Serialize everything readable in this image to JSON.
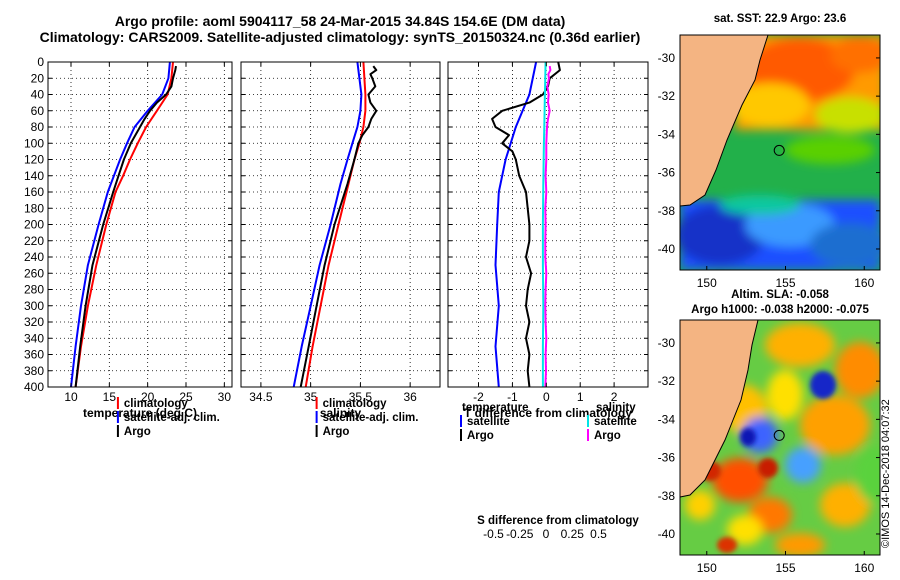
{
  "titles": {
    "line1": "Argo profile: aoml 5904117_58 24-Mar-2015 34.84S 154.6E (DM data)",
    "line2": "Climatology: CARS2009. Satellite-adjusted climatology: synTS_20150324.nc (0.36d earlier)"
  },
  "colors": {
    "climatology": "#ff0000",
    "satellite": "#0000ff",
    "argo": "#000000",
    "sal_satellite": "#00e5e5",
    "sal_argo": "#ff00ff"
  },
  "chart_data": [
    {
      "type": "line",
      "name": "temperature",
      "xlabel": "temperature (deg C)",
      "xlim": [
        7,
        31
      ],
      "xticks": [
        10,
        15,
        20,
        25,
        30
      ],
      "xtick_labels": [
        "10",
        "15",
        "20",
        "25",
        "30"
      ],
      "ylim": [
        0,
        400
      ],
      "yticks": [
        0,
        20,
        40,
        60,
        80,
        100,
        120,
        140,
        160,
        180,
        200,
        220,
        240,
        260,
        280,
        300,
        320,
        340,
        360,
        380,
        400
      ],
      "ytick_labels": [
        "0",
        "20",
        "40",
        "60",
        "80",
        "100",
        "120",
        "140",
        "160",
        "180",
        "200",
        "220",
        "240",
        "260",
        "280",
        "300",
        "320",
        "340",
        "360",
        "380",
        "400"
      ],
      "grid": true,
      "legend": [
        "climatology",
        "satellite-adj. clim.",
        "Argo"
      ],
      "series": [
        {
          "name": "climatology",
          "color": "#ff0000",
          "depth": [
            0,
            20,
            40,
            60,
            80,
            100,
            120,
            140,
            160,
            200,
            250,
            300,
            350,
            400
          ],
          "values": [
            23.3,
            23.1,
            22.6,
            21.2,
            19.8,
            18.7,
            17.7,
            16.8,
            15.8,
            14.6,
            13.3,
            12.2,
            11.3,
            10.6
          ]
        },
        {
          "name": "satellite-adj. clim.",
          "color": "#0000ff",
          "depth": [
            0,
            20,
            40,
            60,
            80,
            100,
            120,
            140,
            160,
            200,
            250,
            300,
            350,
            400
          ],
          "values": [
            22.9,
            22.7,
            21.9,
            20.0,
            18.3,
            17.3,
            16.4,
            15.6,
            14.8,
            13.6,
            12.2,
            11.3,
            10.6,
            10.0
          ]
        },
        {
          "name": "Argo",
          "color": "#000000",
          "depth": [
            5,
            10,
            20,
            30,
            40,
            50,
            60,
            70,
            80,
            90,
            100,
            120,
            140,
            160,
            200,
            250,
            300,
            350,
            400
          ],
          "values": [
            23.7,
            23.6,
            23.3,
            23.1,
            22.4,
            21.2,
            20.3,
            19.6,
            19.0,
            18.4,
            17.8,
            16.9,
            16.2,
            15.5,
            14.2,
            12.8,
            11.9,
            11.2,
            10.6
          ]
        }
      ]
    },
    {
      "type": "line",
      "name": "salinity",
      "xlabel": "salinity",
      "xlim": [
        34.3,
        36.3
      ],
      "xticks": [
        34.5,
        35,
        35.5,
        36
      ],
      "xtick_labels": [
        "34.5",
        "35",
        "35.5",
        "36"
      ],
      "ylim": [
        0,
        400
      ],
      "grid": true,
      "legend": [
        "climatology",
        "satellite-adj. clim.",
        "Argo"
      ],
      "series": [
        {
          "name": "climatology",
          "color": "#ff0000",
          "depth": [
            0,
            20,
            40,
            60,
            80,
            100,
            120,
            150,
            200,
            250,
            300,
            350,
            400
          ],
          "values": [
            35.53,
            35.54,
            35.55,
            35.55,
            35.53,
            35.49,
            35.44,
            35.38,
            35.28,
            35.18,
            35.1,
            35.02,
            34.95
          ]
        },
        {
          "name": "satellite-adj. clim.",
          "color": "#0000ff",
          "depth": [
            0,
            20,
            40,
            60,
            80,
            100,
            120,
            150,
            200,
            250,
            300,
            350,
            400
          ],
          "values": [
            35.47,
            35.49,
            35.51,
            35.5,
            35.47,
            35.42,
            35.37,
            35.3,
            35.2,
            35.09,
            35.0,
            34.91,
            34.83
          ]
        },
        {
          "name": "Argo",
          "color": "#000000",
          "depth": [
            5,
            10,
            15,
            20,
            30,
            40,
            50,
            60,
            70,
            80,
            90,
            100,
            120,
            150,
            200,
            250,
            300,
            350,
            400
          ],
          "values": [
            35.63,
            35.66,
            35.6,
            35.62,
            35.65,
            35.58,
            35.6,
            35.66,
            35.61,
            35.58,
            35.52,
            35.48,
            35.44,
            35.37,
            35.24,
            35.14,
            35.06,
            34.98,
            34.9
          ]
        }
      ]
    },
    {
      "type": "line",
      "name": "difference",
      "xlabel": "T difference from climatology",
      "xlabel_top": "S difference from climatology",
      "xlim": [
        -2.9,
        3.0
      ],
      "xticks": [
        -2,
        -1,
        0,
        1,
        2
      ],
      "xtick_labels": [
        "-2",
        "-1",
        "0",
        "1",
        "2"
      ],
      "sticks": [
        -0.5,
        -0.25,
        0,
        0.25,
        0.5
      ],
      "stick_labels": [
        "-0.5",
        "-0.25",
        "0",
        "0.25",
        "0.5"
      ],
      "ylim": [
        0,
        400
      ],
      "grid": true,
      "legend_left_title": "temperature",
      "legend_right_title": "salinity",
      "legend_left": [
        "satellite",
        "Argo"
      ],
      "legend_right": [
        "satellite",
        "Argo"
      ],
      "series": [
        {
          "name": "T satellite",
          "color": "#0000ff",
          "depth": [
            0,
            40,
            80,
            120,
            160,
            200,
            250,
            300,
            350,
            400
          ],
          "values": [
            -0.3,
            -0.5,
            -0.9,
            -1.2,
            -1.4,
            -1.45,
            -1.5,
            -1.4,
            -1.5,
            -1.4
          ]
        },
        {
          "name": "T Argo",
          "color": "#000000",
          "depth": [
            0,
            10,
            20,
            30,
            40,
            50,
            60,
            70,
            80,
            90,
            100,
            110,
            120,
            140,
            160,
            180,
            200,
            220,
            240,
            260,
            280,
            300,
            320,
            340,
            360,
            380,
            400
          ],
          "values": [
            0.35,
            0.4,
            0.1,
            0.05,
            -0.1,
            -0.5,
            -1.3,
            -1.6,
            -1.5,
            -1.1,
            -1.3,
            -1.0,
            -0.9,
            -0.8,
            -0.6,
            -0.55,
            -0.5,
            -0.5,
            -0.6,
            -0.45,
            -0.55,
            -0.6,
            -0.5,
            -0.6,
            -0.5,
            -0.55,
            -0.5
          ]
        },
        {
          "name": "S satellite",
          "color": "#00e5e5",
          "depth": [
            0,
            40,
            60,
            80,
            100,
            150,
            200,
            250,
            300,
            350,
            400
          ],
          "values": [
            -0.02,
            -0.04,
            -0.05,
            -0.06,
            -0.07,
            -0.09,
            -0.1,
            -0.1,
            -0.09,
            -0.1,
            -0.1
          ]
        },
        {
          "name": "S Argo",
          "color": "#ff00ff",
          "depth": [
            5,
            10,
            15,
            20,
            30,
            40,
            50,
            60,
            70,
            80,
            100,
            120,
            140,
            160,
            180,
            200,
            220,
            240,
            260,
            280,
            300,
            320,
            340,
            360,
            380,
            400
          ],
          "values": [
            0.1,
            0.12,
            0.06,
            0.08,
            0.03,
            0.07,
            0.05,
            0.1,
            0.05,
            0.02,
            0.0,
            0.0,
            -0.02,
            0.0,
            -0.03,
            -0.02,
            -0.03,
            -0.03,
            0.0,
            -0.02,
            -0.03,
            -0.02,
            0.0,
            -0.02,
            -0.01,
            -0.03
          ]
        }
      ]
    },
    {
      "type": "heatmap",
      "name": "sst_map",
      "title": "sat. SST: 22.9 Argo: 23.6",
      "xticks": [
        150,
        155,
        160
      ],
      "xtick_labels": [
        "150",
        "155",
        "160"
      ],
      "yticks": [
        -30,
        -32,
        -34,
        -36,
        -38,
        -40
      ],
      "ytick_labels": [
        "-30",
        "-32",
        "-34",
        "-36",
        "-38",
        "-40"
      ],
      "xlim": [
        148.3,
        161.0
      ],
      "ylim": [
        -41.1,
        -28.8
      ],
      "profile_marker": {
        "lon": 154.6,
        "lat": -34.84
      }
    },
    {
      "type": "heatmap",
      "name": "sla_map",
      "title_line1": "Altim. SLA: -0.058",
      "title_line2": "Argo h1000: -0.038 h2000: -0.075",
      "xticks": [
        150,
        155,
        160
      ],
      "xtick_labels": [
        "150",
        "155",
        "160"
      ],
      "yticks": [
        -30,
        -32,
        -34,
        -36,
        -38,
        -40
      ],
      "ytick_labels": [
        "-30",
        "-32",
        "-34",
        "-36",
        "-38",
        "-40"
      ],
      "xlim": [
        148.3,
        161.0
      ],
      "ylim": [
        -41.1,
        -28.8
      ],
      "profile_marker": {
        "lon": 154.6,
        "lat": -34.84
      }
    }
  ],
  "credit": "©IMOS 14-Dec-2018 04:07:32"
}
